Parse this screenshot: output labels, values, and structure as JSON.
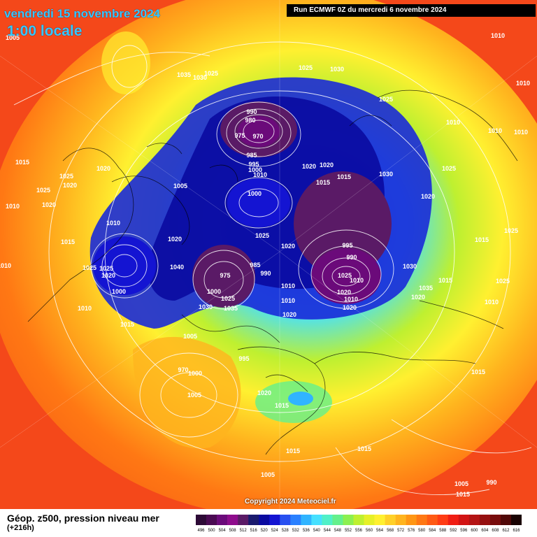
{
  "header": {
    "date": "vendredi 15 novembre 2024",
    "local_time": "1:00 locale",
    "run": "Run ECMWF 0Z du mercredi 6 novembre 2024"
  },
  "footer": {
    "product": "Géop. z500, pression niveau mer",
    "lead_time": "(+216h)",
    "copyright": "Copyright 2024 Meteociel.fr"
  },
  "scale": {
    "labels": [
      "496",
      "500",
      "504",
      "508",
      "512",
      "516",
      "520",
      "524",
      "528",
      "532",
      "536",
      "540",
      "544",
      "548",
      "552",
      "556",
      "560",
      "564",
      "568",
      "572",
      "576",
      "580",
      "584",
      "588",
      "592",
      "596",
      "600",
      "604",
      "608",
      "612",
      "616"
    ],
    "colors": [
      "#2d0a36",
      "#4a0a52",
      "#6b0a7a",
      "#8e0c8c",
      "#5a1a66",
      "#1a1a6e",
      "#0a0aa0",
      "#1414d2",
      "#2850f0",
      "#2a80ff",
      "#30b4ff",
      "#46e0ff",
      "#50f0c8",
      "#64f08c",
      "#8cf050",
      "#bef030",
      "#e6f028",
      "#fff030",
      "#ffd028",
      "#ffb41e",
      "#ff9614",
      "#ff7814",
      "#ff5a14",
      "#ff3c14",
      "#f01e14",
      "#d21414",
      "#b41414",
      "#961010",
      "#780c0c",
      "#500808",
      "#1a0404"
    ]
  },
  "pressure_labels": [
    "1005",
    "1010",
    "1010",
    "1010",
    "1010",
    "1010",
    "1015",
    "1010",
    "1010",
    "1035",
    "1030",
    "1025",
    "1025",
    "1030",
    "1025",
    "990",
    "980",
    "975",
    "970",
    "985",
    "995",
    "1000",
    "1010",
    "1020",
    "1020",
    "1015",
    "1015",
    "1030",
    "1025",
    "1020",
    "1015",
    "1025",
    "1025",
    "1010",
    "1015",
    "1025",
    "1020",
    "1020",
    "1025",
    "1020",
    "1010",
    "1015",
    "1020",
    "1025",
    "1020",
    "1005",
    "1000",
    "995",
    "990",
    "1000",
    "1010",
    "1015",
    "1005",
    "1000",
    "1005",
    "995",
    "970",
    "975",
    "985",
    "990",
    "1000",
    "1025",
    "1035",
    "1030",
    "1040",
    "1025",
    "1025",
    "1020",
    "1025",
    "1010",
    "1020",
    "1010",
    "1020",
    "1030",
    "1035",
    "1020",
    "1015",
    "1010",
    "1010",
    "1020",
    "1020",
    "1015",
    "1015",
    "1015",
    "1005",
    "1005",
    "1015",
    "990"
  ]
}
